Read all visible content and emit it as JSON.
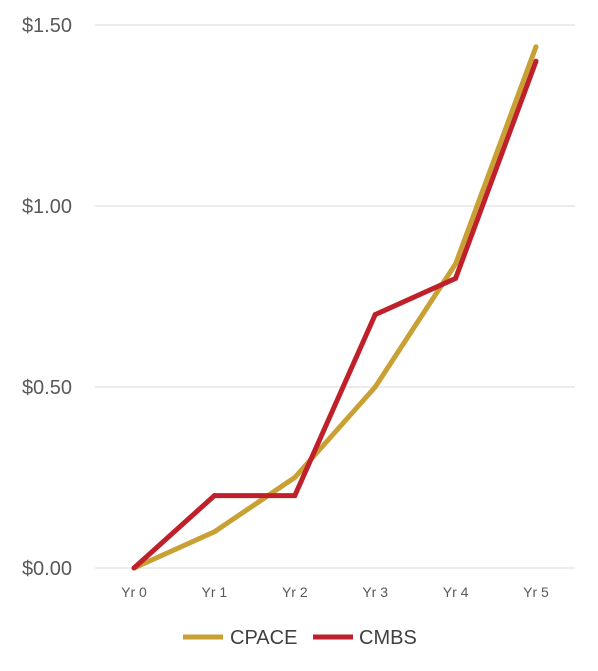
{
  "chart_data": {
    "type": "line",
    "title": "",
    "xlabel": "",
    "ylabel": "",
    "categories": [
      "Yr 0",
      "Yr 1",
      "Yr 2",
      "Yr 3",
      "Yr 4",
      "Yr 5"
    ],
    "ylim": [
      0,
      1.5
    ],
    "yticks": [
      0,
      0.5,
      1.0,
      1.5
    ],
    "ytick_labels": [
      "$0.00",
      "$0.50",
      "$1.00",
      "$1.50"
    ],
    "grid": true,
    "legend_position": "bottom",
    "series": [
      {
        "name": "CPACE",
        "color": "#C9A033",
        "values": [
          0,
          0.1,
          0.25,
          0.5,
          0.84,
          1.44
        ]
      },
      {
        "name": "CMBS",
        "color": "#C0202A",
        "values": [
          0,
          0.2,
          0.2,
          0.7,
          0.8,
          1.4
        ]
      }
    ]
  }
}
